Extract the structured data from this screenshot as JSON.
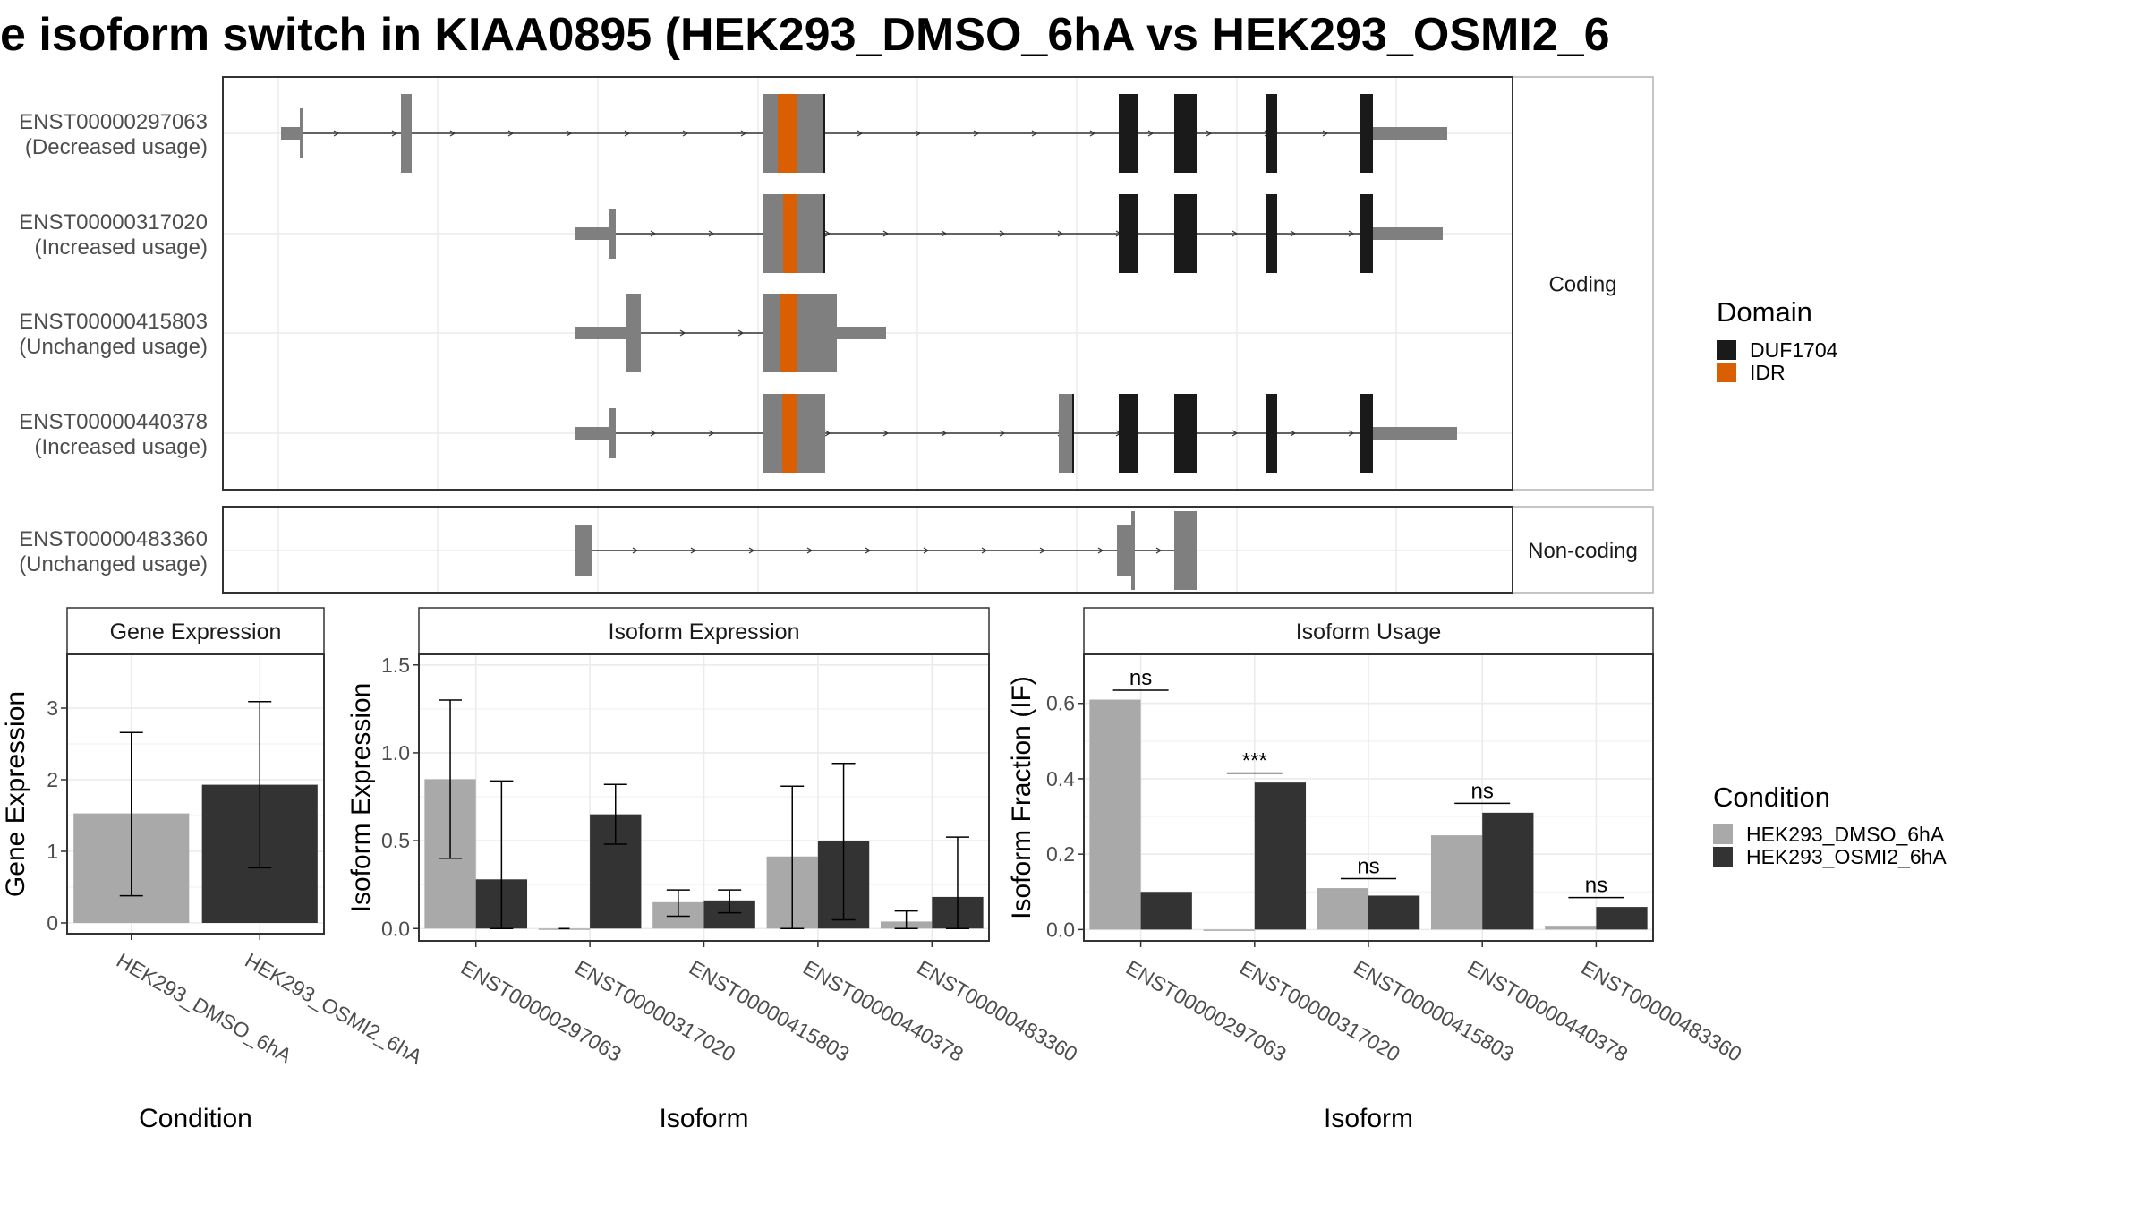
{
  "title": "e isoform switch in KIAA0895 (HEK293_DMSO_6hA vs HEK293_OSMI2_6",
  "colors": {
    "exon": "#7f7f7f",
    "domain_DUF1704": "#1a1a1a",
    "domain_IDR": "#d95f02",
    "dmso": "#a9a9a9",
    "osmi2": "#333333",
    "grid": "#ebebeb",
    "panel_border": "#333333",
    "strip_fill": "#ffffff"
  },
  "transcripts": [
    {
      "id": "ENST00000297063",
      "usage": "(Decreased usage)",
      "group": "Coding"
    },
    {
      "id": "ENST00000317020",
      "usage": "(Increased usage)",
      "group": "Coding"
    },
    {
      "id": "ENST00000415803",
      "usage": "(Unchanged usage)",
      "group": "Coding"
    },
    {
      "id": "ENST00000440378",
      "usage": "(Increased usage)",
      "group": "Coding"
    },
    {
      "id": "ENST00000483360",
      "usage": "(Unchanged usage)",
      "group": "Non-coding"
    }
  ],
  "strips": {
    "coding": "Coding",
    "noncoding": "Non-coding"
  },
  "domain_legend": {
    "title": "Domain",
    "items": [
      {
        "label": "DUF1704",
        "color": "#1a1a1a"
      },
      {
        "label": "IDR",
        "color": "#d95f02"
      }
    ]
  },
  "condition_legend": {
    "title": "Condition",
    "items": [
      {
        "label": "HEK293_DMSO_6hA",
        "color": "#a9a9a9"
      },
      {
        "label": "HEK293_OSMI2_6hA",
        "color": "#333333"
      }
    ]
  },
  "chart_data": [
    {
      "type": "bar",
      "title": "Gene Expression",
      "xlabel": "Condition",
      "ylabel": "Gene Expression",
      "ylim": [
        -0.15,
        3.75
      ],
      "yticks": [
        0,
        1,
        2,
        3
      ],
      "categories": [
        "HEK293_DMSO_6hA",
        "HEK293_OSMI2_6hA"
      ],
      "values": [
        1.53,
        1.93
      ],
      "ci_low": [
        0.38,
        0.77
      ],
      "ci_high": [
        2.66,
        3.09
      ]
    },
    {
      "type": "bar",
      "title": "Isoform Expression",
      "xlabel": "Isoform",
      "ylabel": "Isoform Expression",
      "ylim": [
        -0.07,
        1.56
      ],
      "yticks": [
        0.0,
        0.5,
        1.0,
        1.5
      ],
      "categories": [
        "ENST00000297063",
        "ENST00000317020",
        "ENST00000415803",
        "ENST00000440378",
        "ENST00000483360"
      ],
      "series": [
        {
          "name": "HEK293_DMSO_6hA",
          "values": [
            0.85,
            0.0,
            0.15,
            0.41,
            0.04
          ],
          "ci_low": [
            0.4,
            0.0,
            0.07,
            0.0,
            0.0
          ],
          "ci_high": [
            1.3,
            0.0,
            0.22,
            0.81,
            0.1
          ]
        },
        {
          "name": "HEK293_OSMI2_6hA",
          "values": [
            0.28,
            0.65,
            0.16,
            0.5,
            0.18
          ],
          "ci_low": [
            0.0,
            0.48,
            0.09,
            0.05,
            0.0
          ],
          "ci_high": [
            0.84,
            0.82,
            0.22,
            0.94,
            0.52
          ]
        }
      ]
    },
    {
      "type": "bar",
      "title": "Isoform Usage",
      "xlabel": "Isoform",
      "ylabel": "Isoform Fraction (IF)",
      "ylim": [
        -0.03,
        0.73
      ],
      "yticks": [
        0.0,
        0.2,
        0.4,
        0.6
      ],
      "categories": [
        "ENST00000297063",
        "ENST00000317020",
        "ENST00000415803",
        "ENST00000440378",
        "ENST00000483360"
      ],
      "series": [
        {
          "name": "HEK293_DMSO_6hA",
          "values": [
            0.61,
            0.0,
            0.11,
            0.25,
            0.01
          ]
        },
        {
          "name": "HEK293_OSMI2_6hA",
          "values": [
            0.1,
            0.39,
            0.09,
            0.31,
            0.06
          ]
        }
      ],
      "significance": [
        {
          "label": "ns",
          "y": 0.635
        },
        {
          "label": "***",
          "y": 0.415
        },
        {
          "label": "ns",
          "y": 0.135
        },
        {
          "label": "ns",
          "y": 0.335
        },
        {
          "label": "ns",
          "y": 0.085
        }
      ]
    }
  ]
}
